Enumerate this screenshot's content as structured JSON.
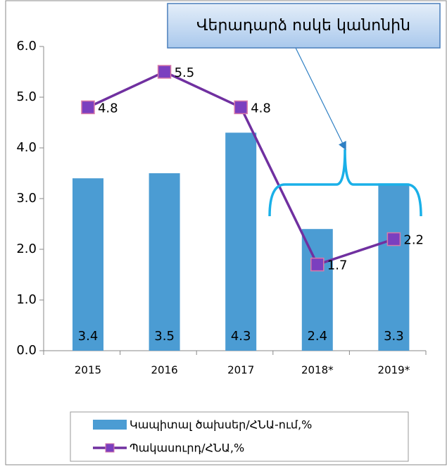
{
  "chart_data": {
    "type": "bar",
    "annotation": "Վերադարձ ոսկե կանոնին",
    "categories": [
      "2015",
      "2016",
      "2017",
      "2018*",
      "2019*"
    ],
    "series": [
      {
        "name": "Կապիտալ ծախսեր/ՀՆԱ-ում,%",
        "type": "bar",
        "color": "#4b9cd3",
        "values": [
          3.4,
          3.5,
          4.3,
          2.4,
          3.3
        ]
      },
      {
        "name": "Պակասուրդ/ՀՆԱ,%",
        "type": "line",
        "color": "#7030a0",
        "values": [
          4.8,
          5.5,
          4.8,
          1.7,
          2.2
        ]
      }
    ],
    "ylim": [
      0,
      6
    ],
    "yticks": [
      {
        "value": 0,
        "label": "0.0"
      },
      {
        "value": 1,
        "label": "1.0"
      },
      {
        "value": 2,
        "label": "2.0"
      },
      {
        "value": 3,
        "label": "3.0"
      },
      {
        "value": 4,
        "label": "4.0"
      },
      {
        "value": 5,
        "label": "5.0"
      },
      {
        "value": 6,
        "label": "6.0"
      }
    ],
    "grid": false,
    "legend": "bottom"
  }
}
